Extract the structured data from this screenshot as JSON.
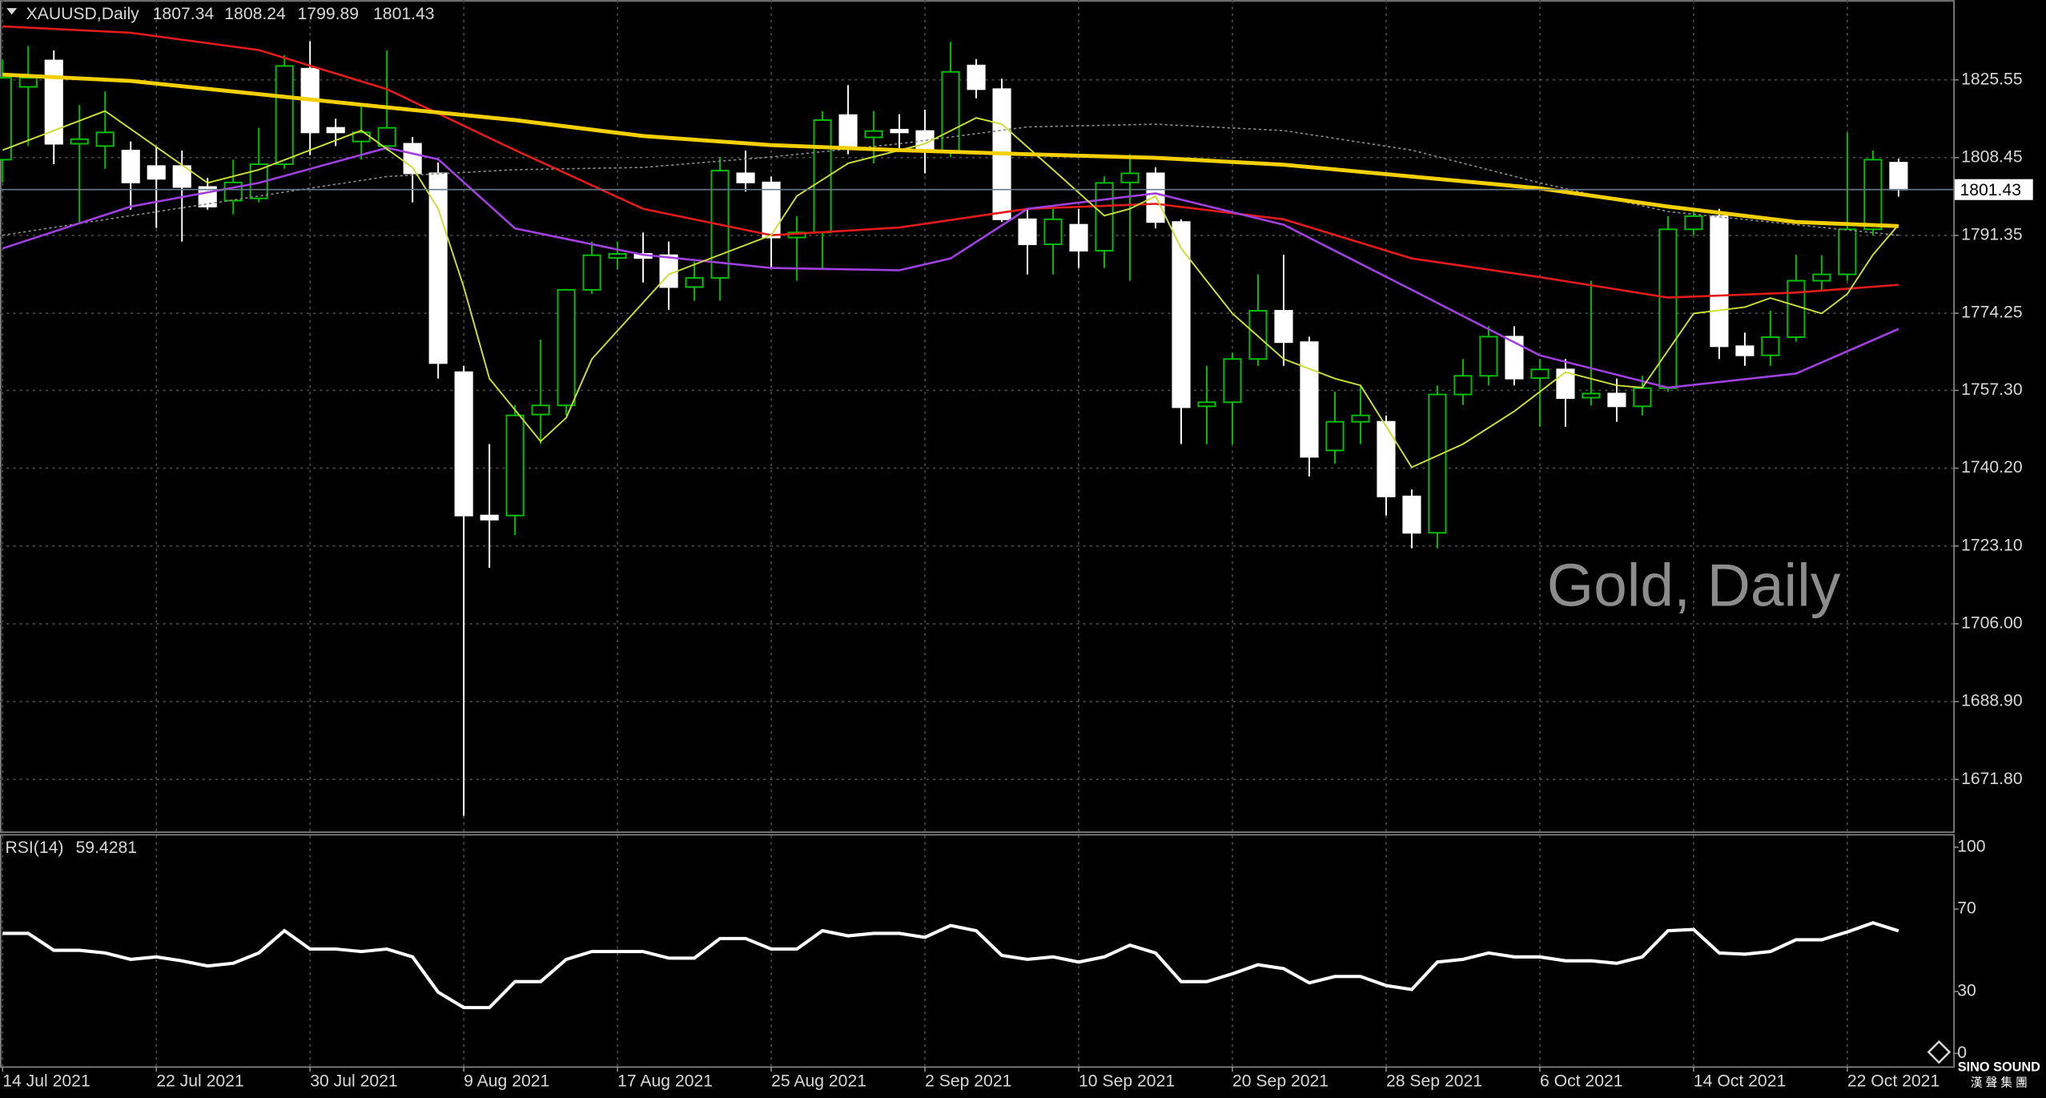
{
  "chart_data": [
    {
      "type": "candlestick",
      "title": "XAUUSD,Daily",
      "watermark": "Gold, Daily",
      "categories": [
        "14 Jul 2021",
        null,
        null,
        null,
        null,
        null,
        "22 Jul 2021",
        null,
        null,
        null,
        null,
        null,
        "30 Jul 2021",
        null,
        null,
        null,
        null,
        null,
        "9 Aug 2021",
        null,
        null,
        null,
        null,
        null,
        "17 Aug 2021",
        null,
        null,
        null,
        null,
        null,
        "25 Aug 2021",
        null,
        null,
        null,
        null,
        null,
        "2 Sep 2021",
        null,
        null,
        null,
        null,
        null,
        "10 Sep 2021",
        null,
        null,
        null,
        null,
        null,
        "20 Sep 2021",
        null,
        null,
        null,
        null,
        null,
        "28 Sep 2021",
        null,
        null,
        null,
        null,
        null,
        "6 Oct 2021",
        null,
        null,
        null,
        null,
        null,
        "14 Oct 2021",
        null,
        null,
        null,
        null,
        null,
        "22 Oct 2021",
        null,
        null
      ],
      "open": [
        1808,
        1824,
        1829.8,
        1811.5,
        1811,
        1810,
        1806.6,
        1806.6,
        1802,
        1799,
        1799.5,
        1807,
        1828,
        1815,
        1812,
        1811,
        1811.5,
        1805,
        1761.3,
        1729.8,
        1729.8,
        1752,
        1754,
        1779.4,
        1786.4,
        1787.3,
        1787,
        1780,
        1782,
        1805,
        1803,
        1790.9,
        1792,
        1817.8,
        1812.9,
        1814.6,
        1814.3,
        1809.8,
        1828.7,
        1823.5,
        1794.9,
        1789.4,
        1793.7,
        1788,
        1803,
        1805,
        1794.3,
        1753.8,
        1754.7,
        1764.2,
        1774.8,
        1767.9,
        1744.1,
        1750.4,
        1750.4,
        1734,
        1726,
        1756.4,
        1760.5,
        1769.1,
        1760,
        1761.9,
        1755.7,
        1756.6,
        1753.8,
        1757.8,
        1792.7,
        1795.6,
        1767,
        1765,
        1769,
        1781.4,
        1782.8,
        1792.7,
        1807.34
      ],
      "high": [
        1830,
        1833,
        1832,
        1820,
        1823,
        1812,
        1811,
        1810,
        1804,
        1808,
        1815,
        1831,
        1834,
        1817,
        1820,
        1832,
        1813,
        1807.4,
        1762.7,
        1745.5,
        1754.1,
        1768.5,
        1779.6,
        1790,
        1790,
        1792,
        1790,
        1785.6,
        1808.6,
        1810,
        1804.3,
        1795.6,
        1818.7,
        1824.4,
        1818.7,
        1818,
        1819,
        1833.9,
        1830.1,
        1825.8,
        1797.2,
        1797.2,
        1797.2,
        1804.3,
        1809.2,
        1806.3,
        1794.9,
        1762.7,
        1765.6,
        1782.8,
        1787.1,
        1769.1,
        1757,
        1758.4,
        1751.8,
        1735.5,
        1758.4,
        1764.2,
        1771.4,
        1771.4,
        1764.2,
        1764.2,
        1781.4,
        1759.9,
        1760.5,
        1795.6,
        1797.2,
        1797.2,
        1770,
        1774.8,
        1787.1,
        1787,
        1813.9,
        1810,
        1808.24
      ],
      "low": [
        1803,
        1811,
        1807,
        1794,
        1806,
        1797,
        1793,
        1790,
        1797,
        1796,
        1798.6,
        1806,
        1809,
        1811,
        1808,
        1810,
        1798.6,
        1759.9,
        1663.8,
        1718.3,
        1725.5,
        1745.5,
        1751.8,
        1778.5,
        1784,
        1781,
        1775,
        1777,
        1777,
        1801,
        1784.2,
        1781.4,
        1784.2,
        1809.2,
        1807.2,
        1810,
        1805,
        1808.6,
        1821.5,
        1794.3,
        1782.8,
        1782.8,
        1784.2,
        1784.2,
        1781.4,
        1792.9,
        1745.5,
        1745.5,
        1745.5,
        1762.7,
        1762.7,
        1738.4,
        1741.2,
        1745.5,
        1729.8,
        1722.6,
        1722.6,
        1754.1,
        1758.4,
        1758.4,
        1749.3,
        1749.3,
        1754,
        1750.4,
        1751.8,
        1757,
        1791.4,
        1764.2,
        1762.7,
        1762.7,
        1768,
        1779,
        1781.4,
        1791.4,
        1799.89
      ],
      "close": [
        1826,
        1826,
        1811.5,
        1812.5,
        1814,
        1803,
        1803.8,
        1802,
        1797.7,
        1803,
        1807,
        1828.6,
        1814,
        1814,
        1814,
        1815,
        1805,
        1763.3,
        1729.8,
        1728.9,
        1751.8,
        1754,
        1779.4,
        1787,
        1787.3,
        1786.4,
        1780,
        1782,
        1805.6,
        1803,
        1790.9,
        1792,
        1816.7,
        1810.6,
        1814.3,
        1814,
        1809.8,
        1827.3,
        1823.5,
        1794.9,
        1789.4,
        1794.9,
        1788,
        1802.9,
        1805,
        1794.3,
        1753.6,
        1754.7,
        1764.2,
        1774.8,
        1767.9,
        1742.7,
        1750.4,
        1751.8,
        1734,
        1726,
        1756.4,
        1760.5,
        1769.1,
        1759.9,
        1761.9,
        1755.6,
        1756.6,
        1753.8,
        1757.8,
        1792.7,
        1795.6,
        1767,
        1765,
        1769,
        1781.4,
        1782.8,
        1792.7,
        1808,
        1801.43
      ],
      "up_color": "#00c000",
      "down_color": "#ffffff",
      "lines": [
        {
          "color": "#8a8a8a",
          "width": 1,
          "dashed": true,
          "x": [
            0,
            10,
            15,
            20,
            25,
            30,
            35,
            40,
            45,
            50,
            55,
            60,
            65,
            70,
            74
          ],
          "values": [
            1791.4,
            1800.0,
            1804.3,
            1805.8,
            1806.3,
            1808.6,
            1811.5,
            1815.2,
            1815.8,
            1814.4,
            1810.1,
            1802.9,
            1796.6,
            1793.7,
            1791.4
          ]
        },
        {
          "color": "#e41b1b",
          "width": 1.6,
          "x": [
            0,
            5,
            10,
            15,
            20,
            25,
            30,
            35,
            40,
            45,
            50,
            55,
            60,
            65,
            70,
            74
          ],
          "values": [
            1837.3,
            1835.9,
            1832.1,
            1823.5,
            1810.1,
            1797.2,
            1791.4,
            1793.1,
            1797.2,
            1798.3,
            1794.9,
            1786.3,
            1782.2,
            1777.7,
            1778.8,
            1780.5
          ]
        },
        {
          "color": "#a040e0",
          "width": 1.6,
          "x": [
            0,
            5,
            10,
            15,
            17,
            20,
            25,
            30,
            35,
            37,
            40,
            45,
            50,
            55,
            60,
            65,
            70,
            74
          ],
          "values": [
            1788.5,
            1797.7,
            1802.9,
            1810.6,
            1808.1,
            1792.9,
            1787.1,
            1784.2,
            1783.7,
            1786.3,
            1797.2,
            1800.6,
            1793.7,
            1779.4,
            1765.0,
            1757.9,
            1761.0,
            1770.8
          ]
        },
        {
          "color": "#ccdd33",
          "width": 1.2,
          "x": [
            0,
            4,
            8,
            10,
            14,
            16,
            17,
            18,
            19,
            21,
            22,
            23,
            26,
            28,
            30,
            31,
            33,
            36,
            38,
            39,
            41,
            43,
            44,
            45,
            46,
            48,
            50,
            52,
            53,
            55,
            57,
            59,
            61,
            63,
            64,
            66,
            68,
            69,
            71,
            72,
            73,
            74
          ],
          "values": [
            1810.1,
            1818.7,
            1802.9,
            1805.8,
            1814.4,
            1806.3,
            1797.2,
            1780.0,
            1759.9,
            1746.1,
            1751.3,
            1764.2,
            1782.8,
            1787.1,
            1791.4,
            1800.0,
            1807.2,
            1811.5,
            1817.2,
            1815.8,
            1805.8,
            1795.7,
            1797.2,
            1800.0,
            1788.5,
            1774.2,
            1764.2,
            1759.9,
            1758.4,
            1740.4,
            1745.5,
            1752.7,
            1761.3,
            1758.4,
            1757.9,
            1774.2,
            1775.6,
            1777.6,
            1774.2,
            1778.5,
            1787.1,
            1793.7
          ]
        },
        {
          "color": "#f5d000",
          "width": 3,
          "x": [
            0,
            5,
            10,
            15,
            20,
            25,
            30,
            35,
            40,
            45,
            50,
            55,
            60,
            65,
            70,
            74
          ],
          "values": [
            1826.7,
            1825.3,
            1822.4,
            1819.5,
            1816.7,
            1813.2,
            1811.2,
            1810.1,
            1809.2,
            1808.4,
            1806.9,
            1804.3,
            1801.7,
            1797.7,
            1794.3,
            1793.4
          ]
        }
      ],
      "ylim": [
        1660.35,
        1843.04
      ],
      "yticks": [
        1825.55,
        1808.45,
        1791.35,
        1774.25,
        {
          "value": 1757.3,
          "label": "1757.30"
        },
        {
          "value": 1740.2,
          "label": "1740.20"
        },
        {
          "value": 1723.1,
          "label": "1723.10"
        },
        {
          "value": 1706,
          "label": "1706.00"
        },
        {
          "value": 1688.9,
          "label": "1688.90"
        },
        {
          "value": 1671.8,
          "label": "1671.80"
        }
      ],
      "grid": true
    },
    {
      "type": "line",
      "title": "RSI(14)",
      "color": "#ffffff",
      "values": [
        58.2,
        58.2,
        50.0,
        50.0,
        48.7,
        45.6,
        46.8,
        44.9,
        42.4,
        43.7,
        48.7,
        59.5,
        50.6,
        50.6,
        49.4,
        50.6,
        46.8,
        29.7,
        22.2,
        22.2,
        34.8,
        34.8,
        45.6,
        49.4,
        49.4,
        49.4,
        46.2,
        46.2,
        55.7,
        55.7,
        50.6,
        50.6,
        59.5,
        57.0,
        58.2,
        58.2,
        56.3,
        62.0,
        59.5,
        47.5,
        45.6,
        46.8,
        44.3,
        46.8,
        52.5,
        48.7,
        34.8,
        34.8,
        38.6,
        43.0,
        41.1,
        34.2,
        37.3,
        37.3,
        32.9,
        31.0,
        44.3,
        45.6,
        48.7,
        46.8,
        46.8,
        44.9,
        44.9,
        43.7,
        46.8,
        59.5,
        60.1,
        48.7,
        48.1,
        49.4,
        55.1,
        55.1,
        58.9,
        63.3,
        59.4281
      ],
      "ylim": [
        -6.33,
        105.7
      ],
      "yticks": [
        100,
        70,
        30,
        0
      ]
    }
  ],
  "logo": {
    "name": "SINO SOUND",
    "sub": "漢 聲 集 團"
  }
}
